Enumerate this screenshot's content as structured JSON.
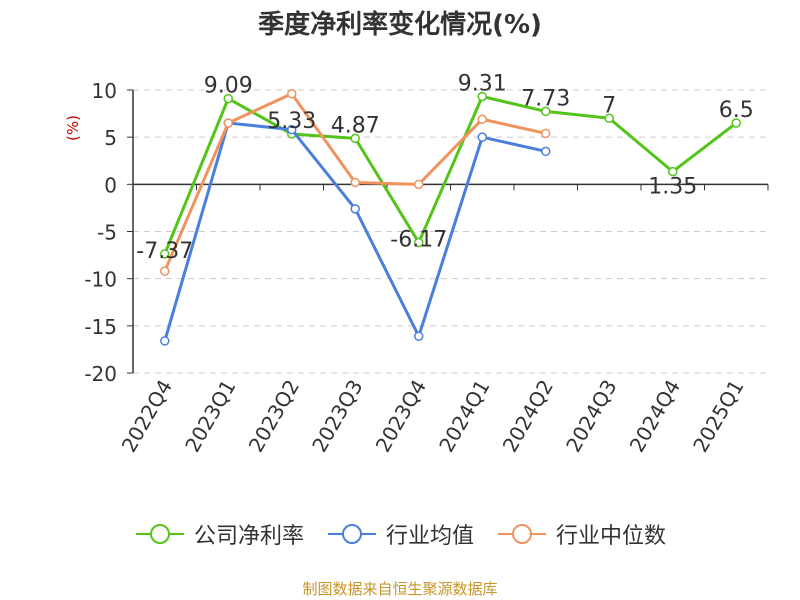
{
  "chart_data": {
    "type": "line",
    "title": "季度净利率变化情况(%)",
    "ylabel": "(%)",
    "xlabel": "",
    "ylim": [
      -20,
      10
    ],
    "yticks": [
      10,
      5,
      0,
      -5,
      -10,
      -15,
      -20
    ],
    "grid": true,
    "legend_position": "bottom",
    "categories": [
      "2022Q4",
      "2023Q1",
      "2023Q2",
      "2023Q3",
      "2023Q4",
      "2024Q1",
      "2024Q2",
      "2024Q3",
      "2024Q4",
      "2025Q1"
    ],
    "series": [
      {
        "name": "公司净利率",
        "color": "#52c41a",
        "values": [
          -7.37,
          9.09,
          5.33,
          4.87,
          -6.17,
          9.31,
          7.73,
          7,
          1.35,
          6.5
        ],
        "labels": [
          "-7.37",
          "9.09",
          "5.33",
          "4.87",
          "-6.17",
          "9.31",
          "7.73",
          "7",
          "1.35",
          "6.5"
        ]
      },
      {
        "name": "行业均值",
        "color": "#4a7fdb",
        "values": [
          -16.6,
          6.5,
          5.8,
          -2.6,
          -16.1,
          5.0,
          3.5,
          null,
          null,
          null
        ]
      },
      {
        "name": "行业中位数",
        "color": "#f0935e",
        "values": [
          -9.2,
          6.5,
          9.6,
          0.2,
          0.0,
          6.9,
          5.4,
          null,
          null,
          null
        ]
      }
    ],
    "source": "制图数据来自恒生聚源数据库"
  }
}
